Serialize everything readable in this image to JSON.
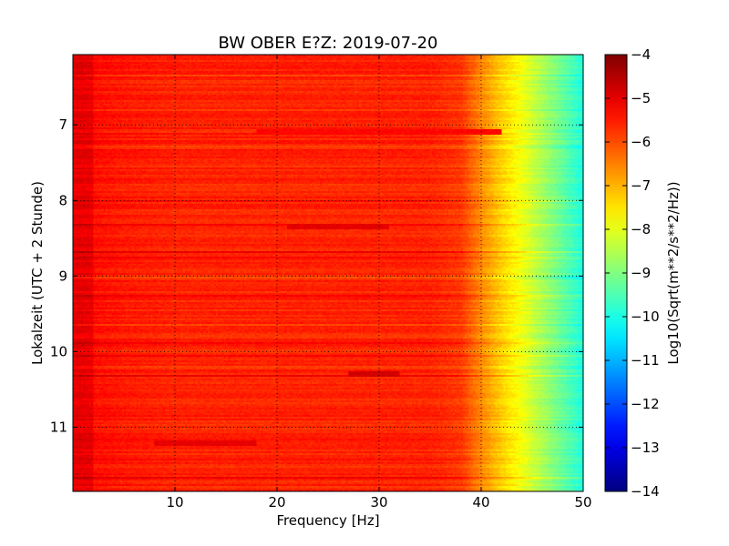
{
  "chart_data": {
    "type": "heatmap",
    "title": "BW OBER E?Z: 2019-07-20",
    "xlabel": "Frequency [Hz]",
    "ylabel": "Lokalzeit (UTC + 2 Stunde)",
    "xlim": [
      0,
      50
    ],
    "ylim": [
      11.85,
      6.07
    ],
    "y_inverted": true,
    "x_ticks": [
      10,
      20,
      30,
      40,
      50
    ],
    "x_tick_labels": [
      "10",
      "20",
      "30",
      "40",
      "50"
    ],
    "y_ticks": [
      7,
      8,
      9,
      10,
      11
    ],
    "y_tick_labels": [
      "7",
      "8",
      "9",
      "10",
      "11"
    ],
    "grid": true,
    "colormap": "jet",
    "colorbar": {
      "label": "Log10(Sqrt(m**2/s**2/Hz))",
      "min": -14,
      "max": -4,
      "ticks": [
        -4,
        -5,
        -6,
        -7,
        -8,
        -9,
        -10,
        -11,
        -12,
        -13,
        -14
      ],
      "tick_labels": [
        "−4",
        "−5",
        "−6",
        "−7",
        "−8",
        "−9",
        "−10",
        "−11",
        "−12",
        "−13",
        "−14"
      ]
    },
    "frequency_profile": {
      "frequency_hz": [
        0,
        5,
        10,
        20,
        30,
        35,
        38,
        40,
        42,
        44,
        46,
        48,
        50
      ],
      "typical_value": [
        -5.3,
        -5.5,
        -5.6,
        -5.6,
        -5.6,
        -5.6,
        -5.8,
        -6.6,
        -7.3,
        -7.9,
        -8.6,
        -9.3,
        -10.0
      ]
    },
    "strong_bands": [
      {
        "time": 8.35,
        "fmin": 21,
        "fmax": 31,
        "value": -5.0
      },
      {
        "time": 10.3,
        "fmin": 27,
        "fmax": 32,
        "value": -4.8
      },
      {
        "time": 11.22,
        "fmin": 8,
        "fmax": 18,
        "value": -5.0
      },
      {
        "time": 7.1,
        "fmin": 18,
        "fmax": 42,
        "value": -5.3
      }
    ]
  }
}
